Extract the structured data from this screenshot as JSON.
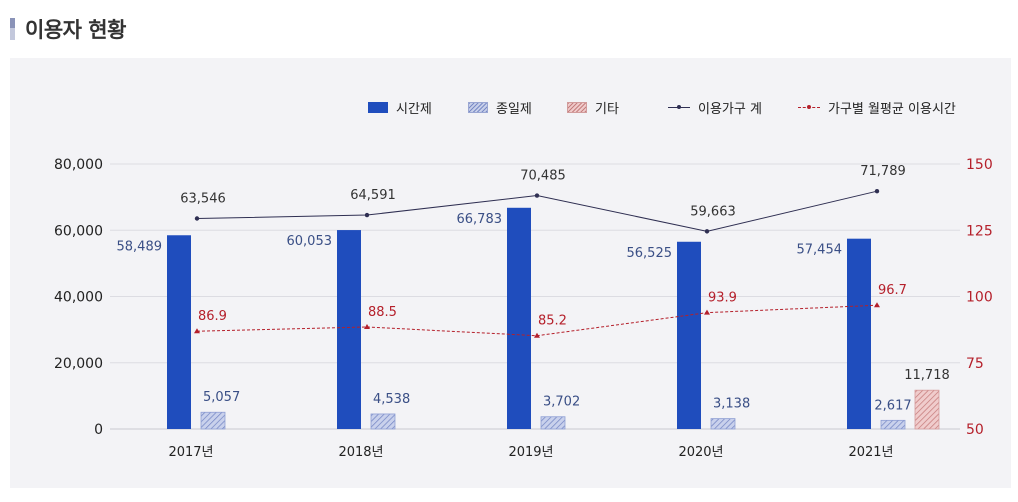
{
  "page": {
    "title": "이용자 현황"
  },
  "legend": {
    "time": "시간제",
    "day": "종일제",
    "etc": "기타",
    "total": "이용가구 계",
    "avg": "가구별 월평균 이용시간"
  },
  "colors": {
    "time": "#1f4dbd",
    "day": "#8f9fd4",
    "etc": "#d59a9a",
    "total": "#2f2f52",
    "avg": "#b5202b",
    "left_axis_text": "#222222",
    "right_axis_text": "#b5202b",
    "bar_label": "#3a4f86",
    "panel": "#f3f3f6"
  },
  "chart_data": {
    "type": "bar",
    "title": "이용자 현황",
    "categories": [
      "2017년",
      "2018년",
      "2019년",
      "2020년",
      "2021년"
    ],
    "series": [
      {
        "name": "시간제",
        "kind": "bar",
        "axis": "left",
        "values": [
          58489,
          60053,
          66783,
          56525,
          57454
        ],
        "labels": [
          "58,489",
          "60,053",
          "66,783",
          "56,525",
          "57,454"
        ]
      },
      {
        "name": "종일제",
        "kind": "bar",
        "axis": "left",
        "values": [
          5057,
          4538,
          3702,
          3138,
          2617
        ],
        "labels": [
          "5,057",
          "4,538",
          "3,702",
          "3,138",
          "2,617"
        ]
      },
      {
        "name": "기타",
        "kind": "bar",
        "axis": "left",
        "values": [
          null,
          null,
          null,
          null,
          11718
        ],
        "labels": [
          "",
          "",
          "",
          "",
          "11,718"
        ]
      },
      {
        "name": "이용가구 계",
        "kind": "line",
        "axis": "left",
        "values": [
          63546,
          64591,
          70485,
          59663,
          71789
        ],
        "labels": [
          "63,546",
          "64,591",
          "70,485",
          "59,663",
          "71,789"
        ]
      },
      {
        "name": "가구별 월평균 이용시간",
        "kind": "line",
        "axis": "right",
        "values": [
          86.9,
          88.5,
          85.2,
          93.9,
          96.7
        ],
        "labels": [
          "86.9",
          "88.5",
          "85.2",
          "93.9",
          "96.7"
        ]
      }
    ],
    "y_left": {
      "min": 0,
      "max": 80000,
      "ticks": [
        "0",
        "20,000",
        "40,000",
        "60,000",
        "80,000"
      ]
    },
    "y_right": {
      "min": 50,
      "max": 150,
      "ticks": [
        "50",
        "75",
        "100",
        "125",
        "150"
      ]
    },
    "grid": true,
    "legend_position": "top-right"
  }
}
